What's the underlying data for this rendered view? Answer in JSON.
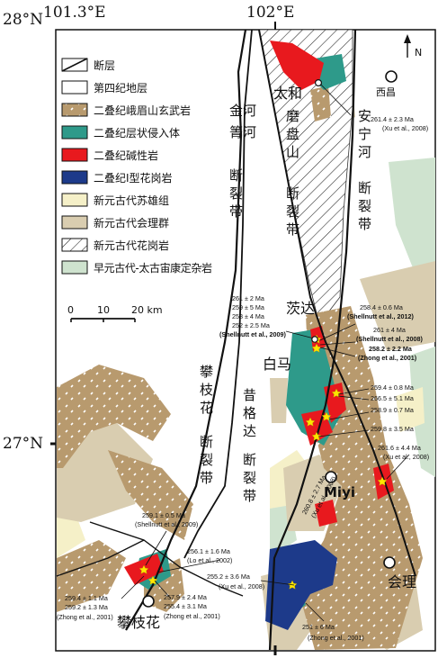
{
  "coords": {
    "lon_left": "101.3°E",
    "lon_right": "102°E",
    "lat_top": "28°N",
    "lat_mid": "27°N"
  },
  "north": "N",
  "legend": [
    {
      "key": "fault",
      "label": "断层"
    },
    {
      "key": "quaternary",
      "label": "第四纪地层",
      "color": "#ffffff"
    },
    {
      "key": "emeishan_basalt",
      "label": "二叠纪峨眉山玄武岩",
      "color": "#b89a6e"
    },
    {
      "key": "layered_intrusion",
      "label": "二叠纪层状侵入体",
      "color": "#2e9a8a"
    },
    {
      "key": "alkaline",
      "label": "二叠纪碱性岩",
      "color": "#e8191e"
    },
    {
      "key": "i_granite",
      "label": "二叠纪I型花岗岩",
      "color": "#1d3a8a"
    },
    {
      "key": "suxiong",
      "label": "新元古代苏雄组",
      "color": "#f5f0c8"
    },
    {
      "key": "huili",
      "label": "新元古代会理群",
      "color": "#d9cdb0"
    },
    {
      "key": "neo_granite",
      "label": "新元古代花岗岩",
      "color": "#ffffff"
    },
    {
      "key": "kangding",
      "label": "早元古代-太古宙康定杂岩",
      "color": "#cfe3cf"
    }
  ],
  "scale": {
    "ticks": [
      "0",
      "10",
      "20 km"
    ]
  },
  "places": {
    "taihe": "太和",
    "xichang": "西昌",
    "maoda": "茨达",
    "baima": "白马",
    "miyi": "Miyi",
    "huili": "会理",
    "panzhihua": "攀枝花"
  },
  "faults": {
    "jinhe_1": "金河",
    "jinhe_2": "箐河",
    "jinhe_3": "断",
    "jinhe_4": "裂",
    "jinhe_5": "带",
    "mopan_1": "磨",
    "mopan_2": "盘",
    "mopan_3": "山",
    "mopan_4": "断",
    "mopan_5": "裂",
    "mopan_6": "带",
    "anning_1": "安",
    "anning_2": "宁",
    "anning_3": "河",
    "anning_4": "断",
    "anning_5": "裂",
    "anning_6": "带",
    "panzhi_1": "攀",
    "panzhi_2": "枝",
    "panzhi_3": "花",
    "panzhi_4": "断",
    "panzhi_5": "裂",
    "panzhi_6": "带",
    "xigeda_1": "昔",
    "xigeda_2": "格",
    "xigeda_3": "达",
    "xigeda_4": "断",
    "xigeda_5": "裂",
    "xigeda_6": "带"
  },
  "ages": {
    "taihe_age": "261.4 ± 2.3 Ma",
    "taihe_ref": "(Xu et al., 2008)",
    "ma_left_1": "261 ± 2 Ma",
    "ma_left_2": "259 ± 5 Ma",
    "ma_left_3": "258 ± 4 Ma",
    "ma_left_4": "252 ± 2.5 Ma",
    "ma_left_ref": "(Shellnutt et al., 2009)",
    "ma_r1": "258.4 ± 0.6 Ma",
    "ma_r1_ref": "(Shellnutt et al., 2012)",
    "ma_r2": "261 ± 4 Ma",
    "ma_r2_ref": "(Shellnutt et al., 2008)",
    "ma_r3": "258.2 ± 2.2 Ma",
    "ma_r3_ref": "(Zhong et al., 2001)",
    "bm_1": "259.4 ± 0.8 Ma",
    "bm_2": "266.5 ± 5.1 Ma",
    "bm_3": "258.9 ± 0.7 Ma",
    "bm_4": "259.8 ± 3.5 Ma",
    "miyi_age": "261.6 ± 4.4 Ma",
    "miyi_ref": "(Xu et al., 2008)",
    "mid_age": "260.8 ± 2.7 Ma",
    "mid_ref": "(Xu et al., 2008)",
    "pz_a": "259.1 ± 0.5 Ma",
    "pz_a_ref": "(Shellnutt et al., 2009)",
    "pz_b": "256.1 ± 1.6 Ma",
    "pz_b_ref": "(Lo et al., 2002)",
    "hl_age": "255.2 ± 3.6 Ma",
    "hl_ref": "(Xu et al., 2008)",
    "pz_c1": "259.4 ± 1.1 Ma",
    "pz_c2": "259.2 ± 1.3 Ma",
    "pz_c_ref": "(Zhong et al., 2001)",
    "pz_d1": "257.9 ± 2.4 Ma",
    "pz_d2": "255.4 ± 3.1 Ma",
    "pz_d_ref": "(Zhong et al., 2001)",
    "bot_age": "251 ± 6 Ma",
    "bot_ref": "(Zhong et al., 2001)"
  }
}
